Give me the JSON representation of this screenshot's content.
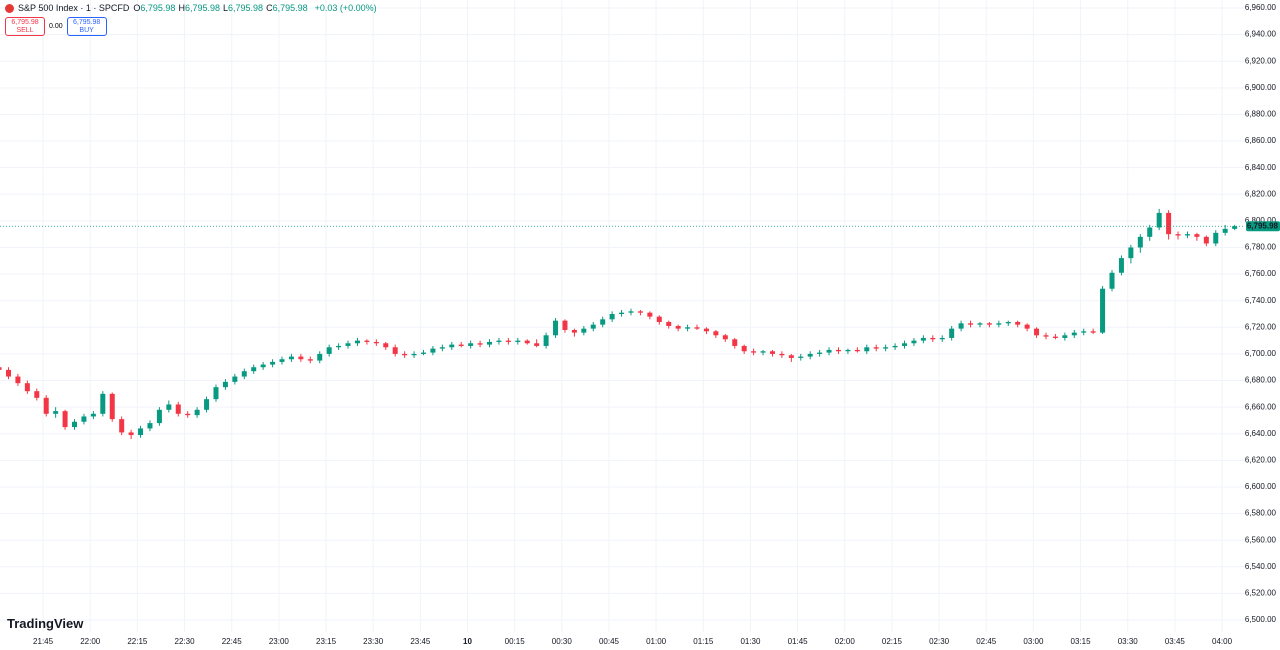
{
  "chart_data": {
    "type": "candlestick",
    "title": "S&P 500 Index · 1 · SPCFD",
    "stats": [
      {
        "key": "O",
        "value": "6,795.98"
      },
      {
        "key": "H",
        "value": "6,795.98"
      },
      {
        "key": "L",
        "value": "6,795.98"
      },
      {
        "key": "C",
        "value": "6,795.98"
      }
    ],
    "change": "+0.03 (+0.00%)",
    "sell": {
      "price": "6,795.98",
      "label": "SELL"
    },
    "spread": "0.00",
    "buy": {
      "price": "6,795.98",
      "label": "BUY"
    },
    "brand": "TradingView",
    "up_color": "#089981",
    "down_color": "#f23645",
    "last_price": {
      "value": 6795.98,
      "label": "6,795.98"
    },
    "xlim": [
      1.3,
      397.3
    ],
    "ylim": [
      6491,
      6966
    ],
    "xticks": [
      {
        "value": 15,
        "label": "21:45"
      },
      {
        "value": 30,
        "label": "22:00"
      },
      {
        "value": 45,
        "label": "22:15"
      },
      {
        "value": 60,
        "label": "22:30"
      },
      {
        "value": 75,
        "label": "22:45"
      },
      {
        "value": 90,
        "label": "23:00"
      },
      {
        "value": 105,
        "label": "23:15"
      },
      {
        "value": 120,
        "label": "23:30"
      },
      {
        "value": 135,
        "label": "23:45"
      },
      {
        "value": 150,
        "label": "10"
      },
      {
        "value": 165,
        "label": "00:15"
      },
      {
        "value": 180,
        "label": "00:30"
      },
      {
        "value": 195,
        "label": "00:45"
      },
      {
        "value": 210,
        "label": "01:00"
      },
      {
        "value": 225,
        "label": "01:15"
      },
      {
        "value": 240,
        "label": "01:30"
      },
      {
        "value": 255,
        "label": "01:45"
      },
      {
        "value": 270,
        "label": "02:00"
      },
      {
        "value": 285,
        "label": "02:15"
      },
      {
        "value": 300,
        "label": "02:30"
      },
      {
        "value": 315,
        "label": "02:45"
      },
      {
        "value": 330,
        "label": "03:00"
      },
      {
        "value": 345,
        "label": "03:15"
      },
      {
        "value": 360,
        "label": "03:30"
      },
      {
        "value": 375,
        "label": "03:45"
      },
      {
        "value": 390,
        "label": "04:00"
      }
    ],
    "yticks": [
      {
        "value": 6500,
        "label": "6,500.00"
      },
      {
        "value": 6520,
        "label": "6,520.00"
      },
      {
        "value": 6540,
        "label": "6,540.00"
      },
      {
        "value": 6560,
        "label": "6,560.00"
      },
      {
        "value": 6580,
        "label": "6,580.00"
      },
      {
        "value": 6600,
        "label": "6,600.00"
      },
      {
        "value": 6620,
        "label": "6,620.00"
      },
      {
        "value": 6640,
        "label": "6,640.00"
      },
      {
        "value": 6660,
        "label": "6,660.00"
      },
      {
        "value": 6680,
        "label": "6,680.00"
      },
      {
        "value": 6700,
        "label": "6,700.00"
      },
      {
        "value": 6720,
        "label": "6,720.00"
      },
      {
        "value": 6740,
        "label": "6,740.00"
      },
      {
        "value": 6760,
        "label": "6,760.00"
      },
      {
        "value": 6780,
        "label": "6,780.00"
      },
      {
        "value": 6800,
        "label": "6,800.00"
      },
      {
        "value": 6820,
        "label": "6,820.00"
      },
      {
        "value": 6840,
        "label": "6,840.00"
      },
      {
        "value": 6860,
        "label": "6,860.00"
      },
      {
        "value": 6880,
        "label": "6,880.00"
      },
      {
        "value": 6900,
        "label": "6,900.00"
      },
      {
        "value": 6920,
        "label": "6,920.00"
      },
      {
        "value": 6940,
        "label": "6,940.00"
      },
      {
        "value": 6960,
        "label": "6,960.00"
      }
    ],
    "grid": true,
    "x": [
      1,
      4,
      7,
      10,
      13,
      16,
      19,
      22,
      25,
      28,
      31,
      34,
      37,
      40,
      43,
      46,
      49,
      52,
      55,
      58,
      61,
      64,
      67,
      70,
      73,
      76,
      79,
      82,
      85,
      88,
      91,
      94,
      97,
      100,
      103,
      106,
      109,
      112,
      115,
      118,
      121,
      124,
      127,
      130,
      133,
      136,
      139,
      142,
      145,
      148,
      151,
      154,
      157,
      160,
      163,
      166,
      169,
      172,
      175,
      178,
      181,
      184,
      187,
      190,
      193,
      196,
      199,
      202,
      205,
      208,
      211,
      214,
      217,
      220,
      223,
      226,
      229,
      232,
      235,
      238,
      241,
      244,
      247,
      250,
      253,
      256,
      259,
      262,
      265,
      268,
      271,
      274,
      277,
      280,
      283,
      286,
      289,
      292,
      295,
      298,
      301,
      304,
      307,
      310,
      313,
      316,
      319,
      322,
      325,
      328,
      331,
      334,
      337,
      340,
      343,
      346,
      349,
      352,
      355,
      358,
      361,
      364,
      367,
      370,
      373,
      376,
      379,
      382,
      385,
      388,
      391,
      394
    ],
    "ohlc": [
      [
        6690,
        6692,
        6686,
        6688
      ],
      [
        6688,
        6690,
        6681,
        6683
      ],
      [
        6683,
        6685,
        6676,
        6678
      ],
      [
        6678,
        6680,
        6670,
        6672
      ],
      [
        6672,
        6674,
        6665,
        6667
      ],
      [
        6667,
        6669,
        6653,
        6655
      ],
      [
        6655,
        6660,
        6652,
        6657
      ],
      [
        6657,
        6658,
        6643,
        6645
      ],
      [
        6645,
        6651,
        6643,
        6649
      ],
      [
        6649,
        6655,
        6647,
        6653
      ],
      [
        6653,
        6657,
        6651,
        6655
      ],
      [
        6655,
        6672,
        6653,
        6670
      ],
      [
        6670,
        6671,
        6649,
        6651
      ],
      [
        6651,
        6653,
        6639,
        6641
      ],
      [
        6641,
        6643,
        6636,
        6639
      ],
      [
        6639,
        6646,
        6637,
        6644
      ],
      [
        6644,
        6650,
        6642,
        6648
      ],
      [
        6648,
        6660,
        6646,
        6658
      ],
      [
        6658,
        6665,
        6656,
        6662
      ],
      [
        6662,
        6664,
        6653,
        6655
      ],
      [
        6655,
        6657,
        6652,
        6654
      ],
      [
        6654,
        6660,
        6652,
        6658
      ],
      [
        6658,
        6668,
        6656,
        6666
      ],
      [
        6666,
        6677,
        6664,
        6675
      ],
      [
        6675,
        6681,
        6673,
        6679
      ],
      [
        6679,
        6685,
        6677,
        6683
      ],
      [
        6683,
        6689,
        6681,
        6687
      ],
      [
        6687,
        6692,
        6685,
        6690
      ],
      [
        6690,
        6694,
        6688,
        6692
      ],
      [
        6692,
        6696,
        6690,
        6694
      ],
      [
        6694,
        6698,
        6692,
        6696
      ],
      [
        6696,
        6700,
        6694,
        6698
      ],
      [
        6698,
        6700,
        6694,
        6696
      ],
      [
        6696,
        6698,
        6693,
        6695
      ],
      [
        6695,
        6702,
        6693,
        6700
      ],
      [
        6700,
        6707,
        6698,
        6705
      ],
      [
        6705,
        6708,
        6703,
        6706
      ],
      [
        6706,
        6710,
        6704,
        6708
      ],
      [
        6708,
        6712,
        6706,
        6710
      ],
      [
        6710,
        6711,
        6707,
        6709
      ],
      [
        6709,
        6711,
        6706,
        6708
      ],
      [
        6708,
        6709,
        6703,
        6705
      ],
      [
        6705,
        6707,
        6698,
        6700
      ],
      [
        6700,
        6702,
        6697,
        6699
      ],
      [
        6699,
        6702,
        6697,
        6700
      ],
      [
        6700,
        6703,
        6699,
        6701
      ],
      [
        6701,
        6706,
        6699,
        6704
      ],
      [
        6704,
        6707,
        6702,
        6705
      ],
      [
        6705,
        6709,
        6703,
        6707
      ],
      [
        6707,
        6709,
        6705,
        6706
      ],
      [
        6706,
        6710,
        6704,
        6708
      ],
      [
        6708,
        6710,
        6705,
        6707
      ],
      [
        6707,
        6711,
        6705,
        6709
      ],
      [
        6709,
        6712,
        6707,
        6710
      ],
      [
        6710,
        6712,
        6707,
        6709
      ],
      [
        6709,
        6712,
        6707,
        6710
      ],
      [
        6710,
        6711,
        6707,
        6708
      ],
      [
        6708,
        6711,
        6705,
        6706
      ],
      [
        6706,
        6716,
        6704,
        6714
      ],
      [
        6714,
        6727,
        6712,
        6725
      ],
      [
        6725,
        6726,
        6716,
        6718
      ],
      [
        6718,
        6719,
        6713,
        6716
      ],
      [
        6716,
        6721,
        6714,
        6719
      ],
      [
        6719,
        6724,
        6717,
        6722
      ],
      [
        6722,
        6728,
        6720,
        6726
      ],
      [
        6726,
        6732,
        6724,
        6730
      ],
      [
        6730,
        6733,
        6728,
        6731
      ],
      [
        6731,
        6734,
        6729,
        6732
      ],
      [
        6732,
        6733,
        6729,
        6731
      ],
      [
        6731,
        6732,
        6726,
        6728
      ],
      [
        6728,
        6729,
        6722,
        6724
      ],
      [
        6724,
        6725,
        6719,
        6721
      ],
      [
        6721,
        6722,
        6717,
        6719
      ],
      [
        6719,
        6722,
        6717,
        6720
      ],
      [
        6720,
        6722,
        6718,
        6719
      ],
      [
        6719,
        6720,
        6715,
        6717
      ],
      [
        6717,
        6718,
        6712,
        6714
      ],
      [
        6714,
        6715,
        6709,
        6711
      ],
      [
        6711,
        6712,
        6704,
        6706
      ],
      [
        6706,
        6707,
        6700,
        6702
      ],
      [
        6702,
        6704,
        6699,
        6701
      ],
      [
        6701,
        6703,
        6699,
        6702
      ],
      [
        6702,
        6703,
        6698,
        6700
      ],
      [
        6700,
        6702,
        6697,
        6699
      ],
      [
        6699,
        6700,
        6694,
        6697
      ],
      [
        6697,
        6700,
        6695,
        6698
      ],
      [
        6698,
        6702,
        6696,
        6700
      ],
      [
        6700,
        6703,
        6698,
        6701
      ],
      [
        6701,
        6705,
        6699,
        6703
      ],
      [
        6703,
        6705,
        6700,
        6702
      ],
      [
        6702,
        6704,
        6700,
        6703
      ],
      [
        6703,
        6705,
        6701,
        6702
      ],
      [
        6702,
        6707,
        6700,
        6705
      ],
      [
        6705,
        6707,
        6702,
        6704
      ],
      [
        6704,
        6707,
        6702,
        6705
      ],
      [
        6705,
        6708,
        6703,
        6706
      ],
      [
        6706,
        6710,
        6704,
        6708
      ],
      [
        6708,
        6712,
        6706,
        6710
      ],
      [
        6710,
        6714,
        6708,
        6712
      ],
      [
        6712,
        6714,
        6709,
        6711
      ],
      [
        6711,
        6714,
        6709,
        6712
      ],
      [
        6712,
        6721,
        6710,
        6719
      ],
      [
        6719,
        6725,
        6717,
        6723
      ],
      [
        6723,
        6725,
        6720,
        6722
      ],
      [
        6722,
        6724,
        6720,
        6723
      ],
      [
        6723,
        6724,
        6720,
        6722
      ],
      [
        6722,
        6725,
        6720,
        6723
      ],
      [
        6723,
        6725,
        6721,
        6724
      ],
      [
        6724,
        6725,
        6720,
        6722
      ],
      [
        6722,
        6723,
        6717,
        6719
      ],
      [
        6719,
        6720,
        6712,
        6714
      ],
      [
        6714,
        6716,
        6711,
        6713
      ],
      [
        6713,
        6715,
        6711,
        6712
      ],
      [
        6712,
        6716,
        6710,
        6714
      ],
      [
        6714,
        6718,
        6712,
        6716
      ],
      [
        6716,
        6719,
        6714,
        6717
      ],
      [
        6717,
        6719,
        6715,
        6716
      ],
      [
        6716,
        6751,
        6715,
        6749
      ],
      [
        6749,
        6763,
        6747,
        6761
      ],
      [
        6761,
        6774,
        6759,
        6772
      ],
      [
        6772,
        6782,
        6768,
        6780
      ],
      [
        6780,
        6790,
        6776,
        6788
      ],
      [
        6788,
        6797,
        6785,
        6795
      ],
      [
        6795,
        6809,
        6793,
        6806
      ],
      [
        6806,
        6808,
        6786,
        6790
      ],
      [
        6790,
        6792,
        6786,
        6789
      ],
      [
        6789,
        6792,
        6787,
        6790
      ],
      [
        6790,
        6791,
        6785,
        6788
      ],
      [
        6788,
        6789,
        6781,
        6783
      ],
      [
        6783,
        6793,
        6781,
        6791
      ],
      [
        6791,
        6797,
        6789,
        6794
      ],
      [
        6794,
        6797,
        6793,
        6795.98
      ]
    ]
  }
}
